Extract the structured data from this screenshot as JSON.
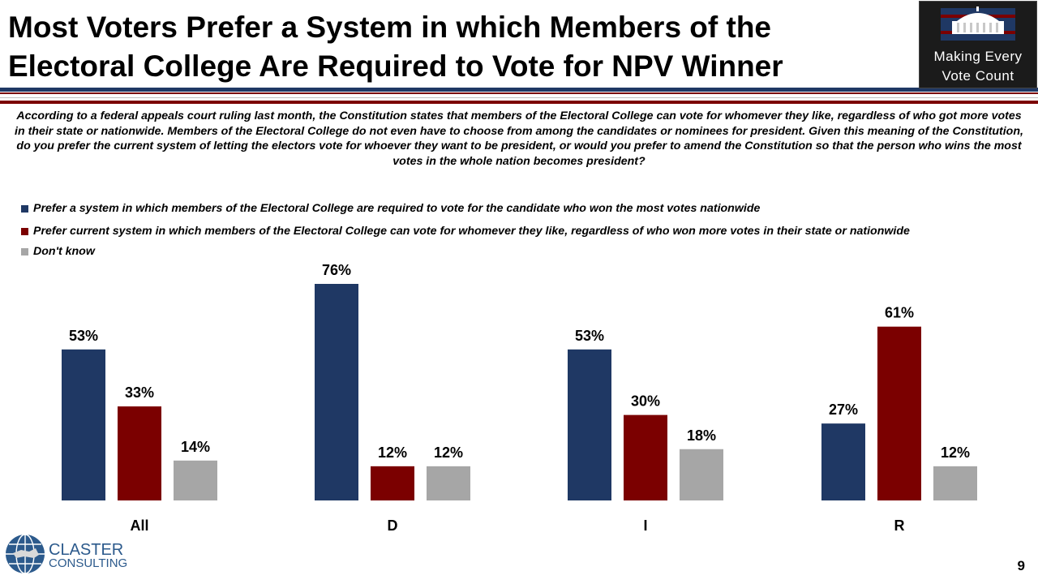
{
  "title": {
    "line1": "Most Voters Prefer a System in which Members of the",
    "line2": "Electoral College Are Required to Vote for NPV Winner"
  },
  "logo": {
    "line1": "Making Every",
    "line2": "Vote Count"
  },
  "question": "According to a federal appeals court ruling last month, the Constitution states that members of the Electoral College can vote for whomever they like, regardless of who got more votes in their state or nationwide. Members of the Electoral College do not even have to choose from among the candidates or nominees for president. Given this meaning of the Constitution, do you prefer the current system of letting the electors vote for whoever they want to be president, or would you prefer to amend the Constitution so that the person who wins the most votes in the whole nation becomes president?",
  "colors": {
    "navy": "#1f3864",
    "red": "#7b0000",
    "gray": "#a6a6a6"
  },
  "chart_data": {
    "type": "bar",
    "categories": [
      "All",
      "D",
      "I",
      "R"
    ],
    "series": [
      {
        "name": "Prefer a system in which members of the Electoral College are required to vote for the candidate who won the most votes nationwide",
        "values": [
          53,
          76,
          53,
          27
        ],
        "labels": [
          "53%",
          "76%",
          "53%",
          "27%"
        ],
        "color": "#1f3864"
      },
      {
        "name": "Prefer current system in which members of the Electoral College can vote for whomever they like, regardless of who won more votes in their state or nationwide",
        "values": [
          33,
          12,
          30,
          61
        ],
        "labels": [
          "33%",
          "12%",
          "30%",
          "61%"
        ],
        "color": "#7b0000"
      },
      {
        "name": "Don't know",
        "values": [
          14,
          12,
          18,
          12
        ],
        "labels": [
          "14%",
          "12%",
          "18%",
          "12%"
        ],
        "color": "#a6a6a6"
      }
    ],
    "ylim": [
      0,
      76
    ],
    "grid": false,
    "legend_position": "top-left"
  },
  "footer": {
    "company_line1": "CLASTER",
    "company_line2": "CONSULTING",
    "page_number": "9"
  }
}
